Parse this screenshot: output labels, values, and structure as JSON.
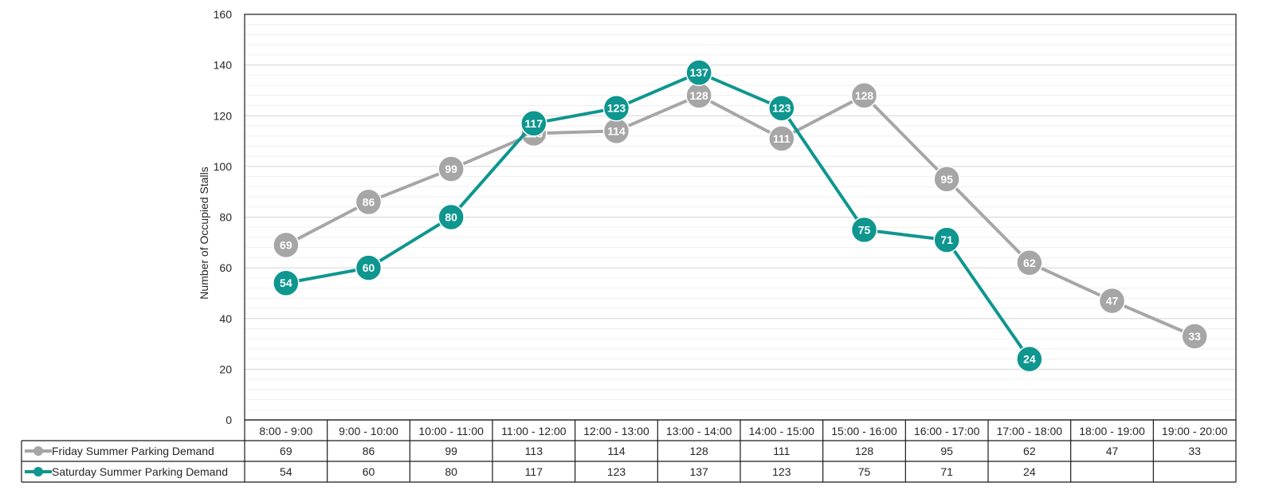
{
  "chart_data": {
    "type": "line",
    "title": "",
    "xlabel": "",
    "ylabel": "Number of Occupied Stalls",
    "ylim": [
      0,
      160
    ],
    "y_ticks": [
      0,
      20,
      40,
      60,
      80,
      100,
      120,
      140,
      160
    ],
    "grid": true,
    "legend": "data-table-below",
    "categories": [
      "8:00 - 9:00",
      "9:00 - 10:00",
      "10:00 - 11:00",
      "11:00 - 12:00",
      "12:00 - 13:00",
      "13:00 - 14:00",
      "14:00 - 15:00",
      "15:00 - 16:00",
      "16:00 - 17:00",
      "17:00 - 18:00",
      "18:00 - 19:00",
      "19:00 - 20:00"
    ],
    "series": [
      {
        "name": "Friday Summer Parking Demand",
        "color": "#a6a6a6",
        "values": [
          69,
          86,
          99,
          113,
          114,
          128,
          111,
          128,
          95,
          62,
          47,
          33
        ]
      },
      {
        "name": "Saturday Summer Parking Demand",
        "color": "#0e968f",
        "values": [
          54,
          60,
          80,
          117,
          123,
          137,
          123,
          75,
          71,
          24,
          null,
          null
        ]
      }
    ]
  }
}
